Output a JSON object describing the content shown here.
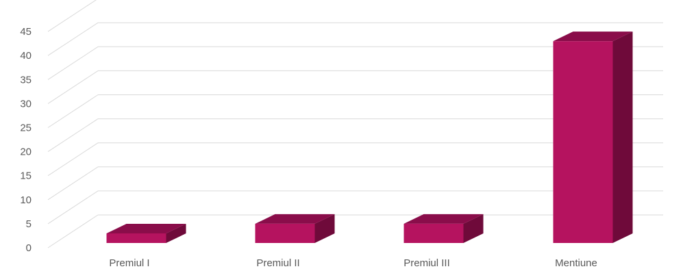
{
  "chart_data": {
    "type": "bar",
    "style": "3d-column",
    "categories": [
      "Premiul I",
      "Premiul II",
      "Premiul III",
      "Mentiune"
    ],
    "values": [
      2,
      4,
      4,
      42
    ],
    "ylim": [
      0,
      45
    ],
    "yticks": [
      "0",
      "5",
      "10",
      "15",
      "20",
      "25",
      "30",
      "35",
      "40",
      "45"
    ],
    "grid": true,
    "legend": "none",
    "colors": {
      "bar_front": "#b5135f",
      "bar_side": "#6f0a3a",
      "bar_top": "#8a0d4a",
      "grid": "#d9d9d9",
      "text": "#595959"
    }
  }
}
